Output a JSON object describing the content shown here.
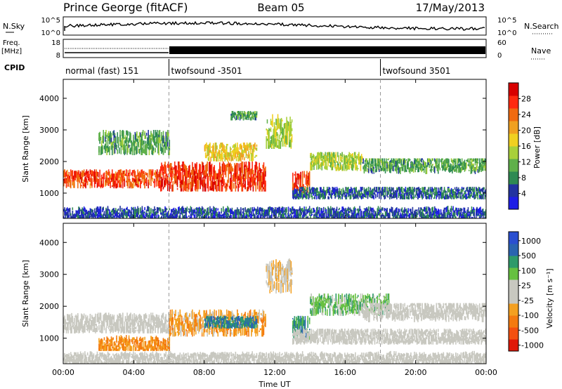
{
  "header": {
    "station": "Prince George (fitACF)",
    "beam": "Beam 05",
    "date": "17/May/2013"
  },
  "strip": {
    "noise_label_left": "N.Sky",
    "noise_label_right": "N.Search",
    "noise_ticks": [
      "10^5",
      "10^0"
    ],
    "freq_label_line1": "Freq.",
    "freq_label_line2": "[MHz]",
    "freq_ticks": [
      "18",
      "8"
    ],
    "nave_label": "Nave",
    "nave_ticks": [
      "60",
      "0"
    ],
    "cpid_label": "CPID"
  },
  "colors": {
    "power_scale": [
      "#1e1ee6",
      "#2233a0",
      "#2e8a52",
      "#5fb04a",
      "#a8d03a",
      "#f0d020",
      "#f0a020",
      "#f06a10",
      "#ff2a10",
      "#d80000"
    ],
    "velocity_scale": [
      "#2a4fd0",
      "#2a64b0",
      "#2e9a6a",
      "#66c040",
      "#c8c8c0",
      "#c8c8c0",
      "#f4a020",
      "#f47a10",
      "#f45010",
      "#e01808"
    ]
  },
  "chart_data": [
    {
      "type": "heatmap",
      "name": "power",
      "xlabel": "",
      "ylabel": "Slant Range [km]",
      "x_unit": "hours UT",
      "xlim": [
        0,
        24
      ],
      "ylim": [
        200,
        4600
      ],
      "x_ticks": [
        "00:00",
        "04:00",
        "08:00",
        "12:00",
        "16:00",
        "20:00",
        "00:00"
      ],
      "y_ticks": [
        "1000",
        "2000",
        "3000",
        "4000"
      ],
      "colorbar_label": "Power [dB]",
      "colorbar_ticks": [
        "4",
        "8",
        "12",
        "16",
        "20",
        "24",
        "28"
      ],
      "cpid_segments": [
        {
          "label": "normal (fast) 151",
          "start": 0,
          "end": 6
        },
        {
          "label": "twofsound -3501",
          "start": 6,
          "end": 18
        },
        {
          "label": "twofsound 3501",
          "start": 18,
          "end": 24
        }
      ],
      "regions": [
        {
          "t": [
            0,
            5.5
          ],
          "r": [
            1150,
            1750
          ],
          "center": 1450,
          "value": 26
        },
        {
          "t": [
            5.5,
            11.5
          ],
          "r": [
            1050,
            2000
          ],
          "center": 1500,
          "value": 27
        },
        {
          "t": [
            2,
            6
          ],
          "r": [
            2200,
            3000
          ],
          "center": 2600,
          "value": 10
        },
        {
          "t": [
            8,
            11
          ],
          "r": [
            2000,
            2600
          ],
          "center": 2300,
          "value": 18
        },
        {
          "t": [
            9.5,
            11
          ],
          "r": [
            3300,
            3600
          ],
          "center": 3450,
          "value": 10
        },
        {
          "t": [
            11.5,
            13
          ],
          "r": [
            2400,
            3500
          ],
          "center": 2900,
          "value": 14
        },
        {
          "t": [
            13,
            14
          ],
          "r": [
            900,
            1700
          ],
          "center": 1300,
          "value": 26
        },
        {
          "t": [
            14,
            17
          ],
          "r": [
            1700,
            2300
          ],
          "center": 2000,
          "value": 14
        },
        {
          "t": [
            17,
            24
          ],
          "r": [
            1600,
            2100
          ],
          "center": 1900,
          "value": 10
        },
        {
          "t": [
            13,
            24
          ],
          "r": [
            800,
            1200
          ],
          "center": 1000,
          "value": 6
        },
        {
          "t": [
            0,
            24
          ],
          "r": [
            200,
            600
          ],
          "center": 350,
          "value": 5
        }
      ]
    },
    {
      "type": "heatmap",
      "name": "velocity",
      "xlabel": "Time UT",
      "ylabel": "Slant Range [km]",
      "x_unit": "hours UT",
      "xlim": [
        0,
        24
      ],
      "ylim": [
        200,
        4600
      ],
      "x_ticks": [
        "00:00",
        "04:00",
        "08:00",
        "12:00",
        "16:00",
        "20:00",
        "00:00"
      ],
      "y_ticks": [
        "1000",
        "2000",
        "3000",
        "4000"
      ],
      "colorbar_label": "Velocity [m s⁻¹]",
      "colorbar_ticks": [
        "1000",
        "500",
        "100",
        "25",
        "-25",
        "-100",
        "-500",
        "-1000"
      ],
      "regions": [
        {
          "t": [
            0,
            6
          ],
          "r": [
            1150,
            1800
          ],
          "center": 1450,
          "value": 0
        },
        {
          "t": [
            2,
            6
          ],
          "r": [
            600,
            1100
          ],
          "center": 800,
          "value": -400
        },
        {
          "t": [
            6,
            11.5
          ],
          "r": [
            1050,
            1900
          ],
          "center": 1450,
          "value": -300
        },
        {
          "t": [
            8,
            11
          ],
          "r": [
            1300,
            1700
          ],
          "center": 1500,
          "value": 600
        },
        {
          "t": [
            11.5,
            13
          ],
          "r": [
            2400,
            3500
          ],
          "center": 2900,
          "value": -150
        },
        {
          "t": [
            13,
            14
          ],
          "r": [
            900,
            1700
          ],
          "center": 1300,
          "value": 500
        },
        {
          "t": [
            14,
            18.5
          ],
          "r": [
            1700,
            2400
          ],
          "center": 2050,
          "value": 300
        },
        {
          "t": [
            17,
            24
          ],
          "r": [
            1500,
            2100
          ],
          "center": 1850,
          "value": 0
        },
        {
          "t": [
            13,
            24
          ],
          "r": [
            800,
            1300
          ],
          "center": 1050,
          "value": 0
        },
        {
          "t": [
            0,
            24
          ],
          "r": [
            200,
            600
          ],
          "center": 350,
          "value": 0
        }
      ]
    }
  ]
}
